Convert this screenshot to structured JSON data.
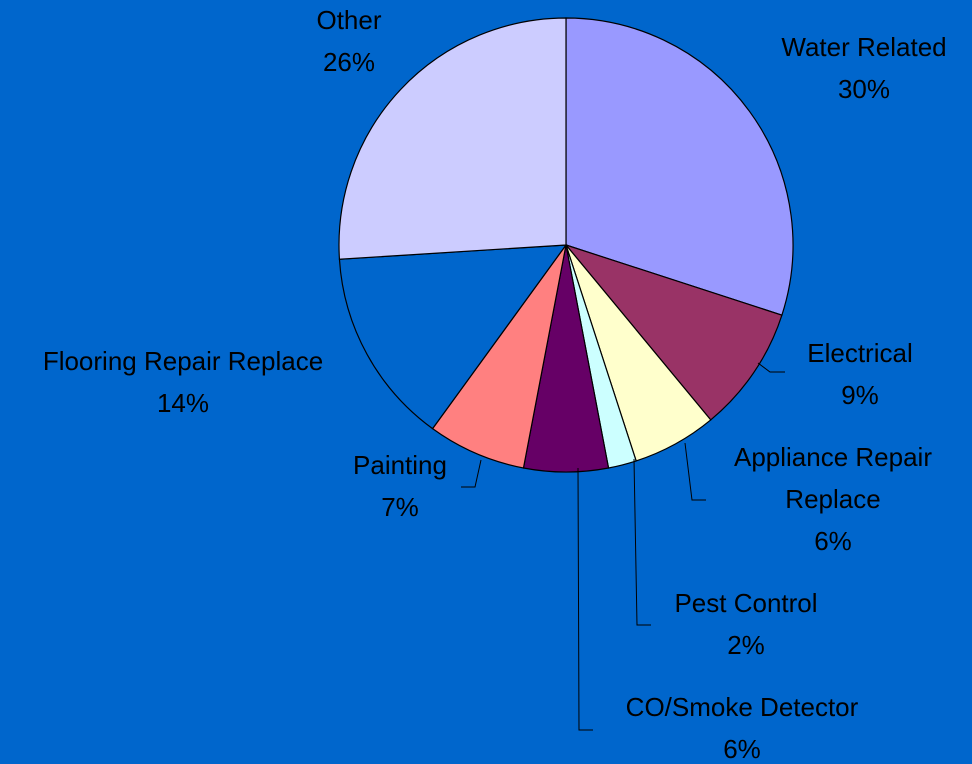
{
  "chart_data": {
    "type": "pie",
    "start_angle_deg": 0,
    "direction": "clockwise",
    "slices": [
      {
        "label": [
          "Water Related"
        ],
        "value": 30,
        "value_label": "30%",
        "color": "#9999ff"
      },
      {
        "label": [
          "Electrical"
        ],
        "value": 9,
        "value_label": "9%",
        "color": "#993366"
      },
      {
        "label": [
          "Appliance Repair",
          "Replace"
        ],
        "value": 6,
        "value_label": "6%",
        "color": "#ffffcc"
      },
      {
        "label": [
          "Pest Control"
        ],
        "value": 2,
        "value_label": "2%",
        "color": "#ccffff"
      },
      {
        "label": [
          "CO/Smoke Detector"
        ],
        "value": 6,
        "value_label": "6%",
        "color": "#660066"
      },
      {
        "label": [
          "Painting"
        ],
        "value": 7,
        "value_label": "7%",
        "color": "#ff8080"
      },
      {
        "label": [
          "Flooring Repair Replace"
        ],
        "value": 14,
        "value_label": "14%",
        "color": "#0066cc"
      },
      {
        "label": [
          "Other"
        ],
        "value": 26,
        "value_label": "26%",
        "color": "#ccccff"
      }
    ]
  }
}
